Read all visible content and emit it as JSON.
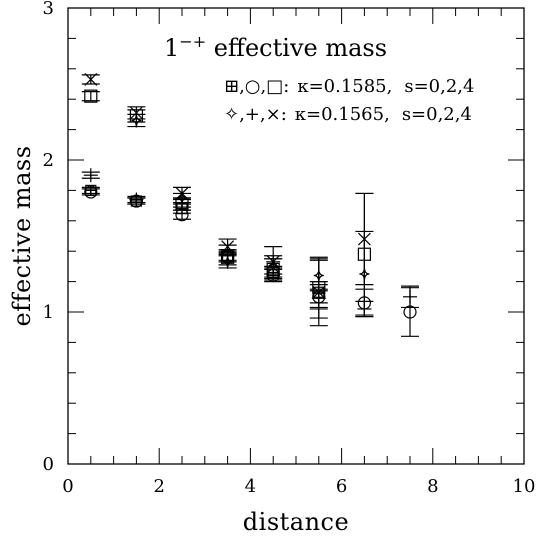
{
  "chart_data": {
    "type": "scatter",
    "title": "1",
    "title_superscript": "−+",
    "title_suffix": " effective mass",
    "xlabel": "distance",
    "ylabel": "effective mass",
    "xlim": [
      0,
      10
    ],
    "ylim": [
      0,
      3
    ],
    "x_ticks": [
      "0",
      "2",
      "4",
      "6",
      "8",
      "10"
    ],
    "y_ticks": [
      "0",
      "1",
      "2",
      "3"
    ],
    "grid": false,
    "legend_placement": "top-right",
    "legend": [
      {
        "symbols": "⊞,○,□:",
        "kappa_label": "κ=0.1585,",
        "s_label": "s=0,2,4"
      },
      {
        "symbols": "✧,+,×:",
        "kappa_label": "κ=0.1565,",
        "s_label": "s=0,2,4"
      }
    ],
    "series": [
      {
        "name": "κ=0.1585, s=0",
        "marker": "boxplus",
        "points": [
          {
            "x": 0.5,
            "y": 1.8,
            "err": 0.02
          },
          {
            "x": 1.5,
            "y": 1.73,
            "err": 0.02
          },
          {
            "x": 2.5,
            "y": 1.68,
            "err": 0.03
          },
          {
            "x": 3.5,
            "y": 1.37,
            "err": 0.03
          },
          {
            "x": 4.5,
            "y": 1.26,
            "err": 0.04
          },
          {
            "x": 5.5,
            "y": 1.13,
            "err": 0.07
          }
        ]
      },
      {
        "name": "κ=0.1585, s=2",
        "marker": "circle",
        "points": [
          {
            "x": 0.5,
            "y": 1.79,
            "err": 0.02
          },
          {
            "x": 1.5,
            "y": 1.73,
            "err": 0.02
          },
          {
            "x": 2.5,
            "y": 1.64,
            "err": 0.03
          },
          {
            "x": 3.5,
            "y": 1.36,
            "err": 0.03
          },
          {
            "x": 4.5,
            "y": 1.24,
            "err": 0.04
          },
          {
            "x": 5.5,
            "y": 1.1,
            "err": 0.08
          },
          {
            "x": 6.5,
            "y": 1.06,
            "err": 0.09
          },
          {
            "x": 7.5,
            "y": 1.0,
            "err": 0.16
          }
        ]
      },
      {
        "name": "κ=0.1585, s=4",
        "marker": "square",
        "points": [
          {
            "x": 0.5,
            "y": 2.42,
            "err": 0.03
          },
          {
            "x": 1.5,
            "y": 2.29,
            "err": 0.04
          },
          {
            "x": 2.5,
            "y": 1.71,
            "err": 0.04
          },
          {
            "x": 3.5,
            "y": 1.36,
            "err": 0.05
          },
          {
            "x": 4.5,
            "y": 1.28,
            "err": 0.07
          },
          {
            "x": 5.5,
            "y": 1.16,
            "err": 0.2
          },
          {
            "x": 6.5,
            "y": 1.38,
            "err": 0.4
          }
        ]
      },
      {
        "name": "κ=0.1565, s=0",
        "marker": "diamond",
        "points": [
          {
            "x": 1.5,
            "y": 2.26,
            "err": 0.04
          },
          {
            "x": 2.5,
            "y": 1.75,
            "err": 0.03
          },
          {
            "x": 3.5,
            "y": 1.33,
            "err": 0.04
          },
          {
            "x": 4.5,
            "y": 1.3,
            "err": 0.05
          },
          {
            "x": 5.5,
            "y": 1.24,
            "err": 0.1
          },
          {
            "x": 6.5,
            "y": 1.25,
            "err": 0.28
          }
        ]
      },
      {
        "name": "κ=0.1565, s=2",
        "marker": "plus",
        "points": [
          {
            "x": 0.5,
            "y": 1.9,
            "err": 0.02
          },
          {
            "x": 1.5,
            "y": 1.74,
            "err": 0.02
          },
          {
            "x": 2.5,
            "y": 1.72,
            "err": 0.03
          },
          {
            "x": 3.5,
            "y": 1.41,
            "err": 0.03
          },
          {
            "x": 4.5,
            "y": 1.33,
            "err": 0.04
          },
          {
            "x": 5.5,
            "y": 1.09,
            "err": 0.06
          },
          {
            "x": 6.5,
            "y": 1.02,
            "err": 0.05
          },
          {
            "x": 7.5,
            "y": 1.1,
            "err": 0.07
          }
        ]
      },
      {
        "name": "κ=0.1565, s=4",
        "marker": "cross",
        "points": [
          {
            "x": 0.5,
            "y": 2.53,
            "err": 0.03
          },
          {
            "x": 1.5,
            "y": 2.31,
            "err": 0.04
          },
          {
            "x": 2.5,
            "y": 1.78,
            "err": 0.04
          },
          {
            "x": 3.5,
            "y": 1.43,
            "err": 0.05
          },
          {
            "x": 4.5,
            "y": 1.33,
            "err": 0.1
          },
          {
            "x": 5.5,
            "y": 1.13,
            "err": 0.22
          },
          {
            "x": 6.5,
            "y": 1.48,
            "err": 0.3
          }
        ]
      }
    ]
  }
}
